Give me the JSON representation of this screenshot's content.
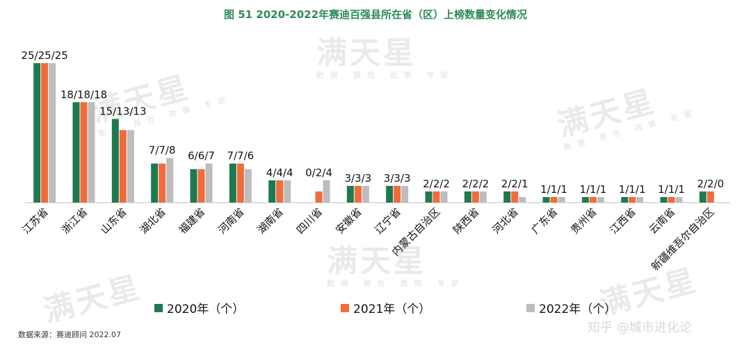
{
  "chart_data": {
    "type": "bar",
    "title": "图 51  2020-2022年赛迪百强县所在省（区）上榜数量变化情况",
    "categories": [
      "江苏省",
      "浙江省",
      "山东省",
      "湖北省",
      "福建省",
      "河南省",
      "湖南省",
      "四川省",
      "安徽省",
      "辽宁省",
      "内蒙古自治区",
      "陕西省",
      "河北省",
      "广东省",
      "贵州省",
      "江西省",
      "云南省",
      "新疆维吾尔自治区"
    ],
    "series": [
      {
        "name": "2020年（个）",
        "color": "#1e7a4e",
        "values": [
          25,
          18,
          15,
          7,
          6,
          7,
          4,
          0,
          3,
          3,
          2,
          2,
          2,
          1,
          1,
          1,
          1,
          2
        ]
      },
      {
        "name": "2021年（个）",
        "color": "#f26b3a",
        "values": [
          25,
          18,
          13,
          7,
          6,
          7,
          4,
          2,
          3,
          3,
          2,
          2,
          2,
          1,
          1,
          1,
          1,
          2
        ]
      },
      {
        "name": "2022年（个）",
        "color": "#bdbdbd",
        "values": [
          25,
          18,
          13,
          8,
          7,
          6,
          4,
          4,
          3,
          3,
          2,
          2,
          1,
          1,
          1,
          1,
          1,
          0
        ]
      }
    ],
    "data_labels": [
      "25/25/25",
      "18/18/18",
      "15/13/13",
      "7/7/8",
      "6/6/7",
      "7/7/6",
      "4/4/4",
      "0/2/4",
      "3/3/3",
      "3/3/3",
      "2/2/2",
      "2/2/2",
      "2/2/1",
      "1/1/1",
      "1/1/1",
      "1/1/1",
      "1/1/1",
      "2/2/0"
    ],
    "ylim": [
      0,
      25
    ],
    "legend": "bottom",
    "grid": false
  },
  "source_note": "数据来源：赛迪顾问 2022.07",
  "watermark": {
    "brand": "满天星",
    "tagline": "数据 报告 政策 专家",
    "corner": "知乎 @城市进化论"
  }
}
